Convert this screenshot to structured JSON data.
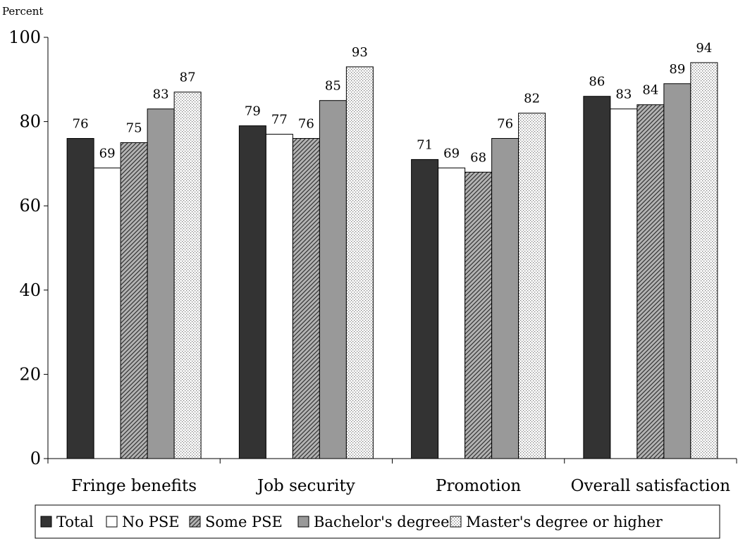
{
  "chart_data": {
    "type": "bar",
    "title": "",
    "xlabel": "",
    "ylabel": "Percent",
    "ylim": [
      0,
      100
    ],
    "yticks": [
      0,
      20,
      40,
      60,
      80,
      100
    ],
    "grid": false,
    "legend_position": "bottom",
    "categories": [
      "Fringe benefits",
      "Job security",
      "Promotion",
      "Overall satisfaction"
    ],
    "series": [
      {
        "name": "Total",
        "values": [
          76,
          79,
          71,
          86
        ],
        "fill": "#333333",
        "pattern": "solid"
      },
      {
        "name": "No PSE",
        "values": [
          69,
          77,
          69,
          83
        ],
        "fill": "#ffffff",
        "pattern": "solid"
      },
      {
        "name": "Some PSE",
        "values": [
          75,
          76,
          68,
          84
        ],
        "fill": "#999999",
        "pattern": "diagonal-hatch"
      },
      {
        "name": "Bachelor's degree",
        "values": [
          83,
          85,
          76,
          89
        ],
        "fill": "#999999",
        "pattern": "solid"
      },
      {
        "name": "Master's degree or higher",
        "values": [
          87,
          93,
          82,
          94
        ],
        "fill": "#e6e6e6",
        "pattern": "dots"
      }
    ]
  }
}
